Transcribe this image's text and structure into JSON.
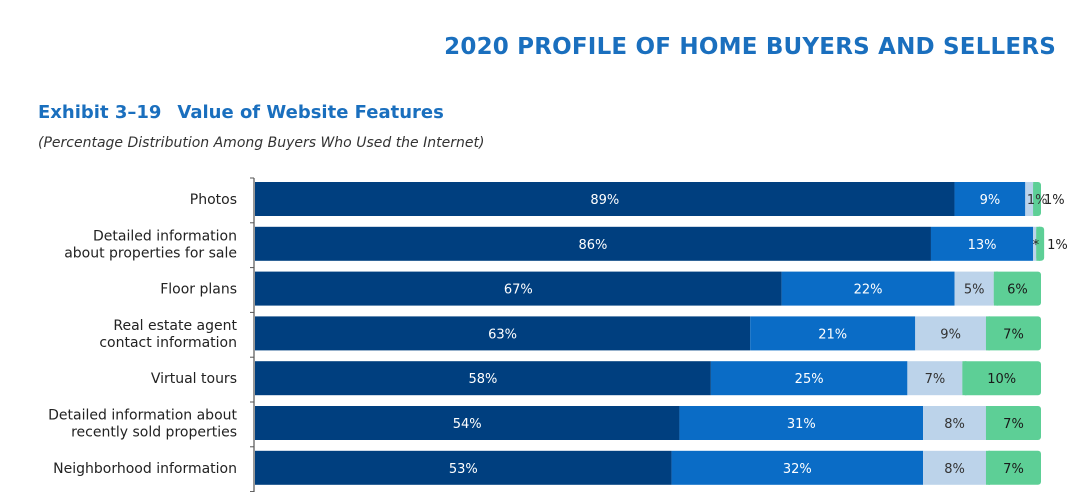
{
  "header": {
    "report_title": "2020 PROFILE OF HOME BUYERS AND SELLERS",
    "exhibit_number": "Exhibit 3–19",
    "exhibit_title": "Value of Website Features",
    "subtitle": "(Percentage Distribution Among Buyers Who Used the Internet)"
  },
  "chart_data": {
    "type": "bar",
    "orientation": "horizontal",
    "stacked": true,
    "categories": [
      [
        "Photos"
      ],
      [
        "Detailed information",
        "about properties for sale"
      ],
      [
        "Floor plans"
      ],
      [
        "Real estate agent",
        "contact information"
      ],
      [
        "Virtual tours"
      ],
      [
        "Detailed information about",
        "recently sold properties"
      ],
      [
        "Neighborhood information"
      ]
    ],
    "series": [
      {
        "color": "#003f7f",
        "label_color": "#ffffff",
        "values": [
          89,
          86,
          67,
          63,
          58,
          54,
          53
        ],
        "labels": [
          "89%",
          "86%",
          "67%",
          "63%",
          "58%",
          "54%",
          "53%"
        ]
      },
      {
        "color": "#0a6cc6",
        "label_color": "#ffffff",
        "values": [
          9,
          13,
          22,
          21,
          25,
          31,
          32
        ],
        "labels": [
          "9%",
          "13%",
          "22%",
          "21%",
          "25%",
          "31%",
          "32%"
        ]
      },
      {
        "color": "#bcd3ea",
        "label_color": "#333333",
        "values": [
          1,
          0.4,
          5,
          9,
          7,
          8,
          8
        ],
        "labels": [
          "1%",
          "*",
          "5%",
          "9%",
          "7%",
          "8%",
          "8%"
        ]
      },
      {
        "color": "#5dcf96",
        "label_color": "#1a1a1a",
        "values": [
          1,
          1,
          6,
          7,
          10,
          7,
          7
        ],
        "labels": [
          "1%",
          "1%",
          "6%",
          "7%",
          "10%",
          "7%",
          "7%"
        ]
      }
    ],
    "xlim": [
      0,
      100
    ],
    "grid": false,
    "legend": "none"
  }
}
